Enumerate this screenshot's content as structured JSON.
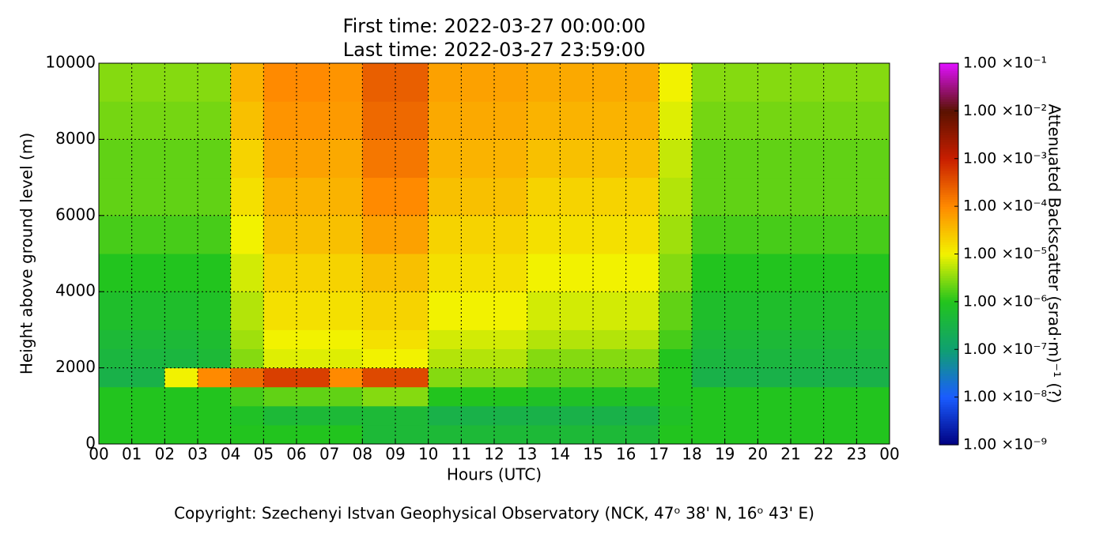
{
  "chart_data": {
    "type": "heatmap",
    "title": "First time: 2022-03-27 00:00:00",
    "subtitle": "Last time: 2022-03-27 23:59:00",
    "x_label": "Hours (UTC)",
    "y_label": "Height above ground level (m)",
    "colorbar_label": "Attenuated Backscatter (srad·m)⁻¹ (?)",
    "footer": "Copyright: Szechenyi Istvan Geophysical Observatory (NCK, 47ᵒ 38' N, 16ᵒ 43' E)",
    "grid": true,
    "xlim": [
      0,
      24
    ],
    "ylim": [
      0,
      10000
    ],
    "xticks": [
      {
        "value": 0,
        "label": "00"
      },
      {
        "value": 1,
        "label": "01"
      },
      {
        "value": 2,
        "label": "02"
      },
      {
        "value": 3,
        "label": "03"
      },
      {
        "value": 4,
        "label": "04"
      },
      {
        "value": 5,
        "label": "05"
      },
      {
        "value": 6,
        "label": "06"
      },
      {
        "value": 7,
        "label": "07"
      },
      {
        "value": 8,
        "label": "08"
      },
      {
        "value": 9,
        "label": "09"
      },
      {
        "value": 10,
        "label": "10"
      },
      {
        "value": 11,
        "label": "11"
      },
      {
        "value": 12,
        "label": "12"
      },
      {
        "value": 13,
        "label": "13"
      },
      {
        "value": 14,
        "label": "14"
      },
      {
        "value": 15,
        "label": "15"
      },
      {
        "value": 16,
        "label": "16"
      },
      {
        "value": 17,
        "label": "17"
      },
      {
        "value": 18,
        "label": "18"
      },
      {
        "value": 19,
        "label": "19"
      },
      {
        "value": 20,
        "label": "20"
      },
      {
        "value": 21,
        "label": "21"
      },
      {
        "value": 22,
        "label": "22"
      },
      {
        "value": 23,
        "label": "23"
      },
      {
        "value": 24,
        "label": "00"
      }
    ],
    "yticks": [
      0,
      2000,
      4000,
      6000,
      8000,
      10000
    ],
    "x_bins": [
      0,
      1,
      2,
      3,
      4,
      5,
      6,
      7,
      8,
      9,
      10,
      11,
      12,
      13,
      14,
      15,
      16,
      17,
      18,
      19,
      20,
      21,
      22,
      23,
      24
    ],
    "y_bins": [
      0,
      500,
      1000,
      1500,
      2000,
      2500,
      3000,
      4000,
      5000,
      6000,
      7000,
      8000,
      9000,
      10000
    ],
    "z": [
      [
        1e-06,
        1e-06,
        1e-06,
        3e-07,
        4e-07,
        5e-07,
        7e-07,
        1e-06,
        1.5e-06,
        2e-06,
        2e-06,
        2.5e-06,
        3e-06
      ],
      [
        1e-06,
        1e-06,
        1e-06,
        3e-07,
        4e-07,
        5e-07,
        7e-07,
        1e-06,
        1.5e-06,
        2e-06,
        2e-06,
        2.5e-06,
        3e-06
      ],
      [
        1e-06,
        1e-06,
        1e-06,
        1e-05,
        4e-07,
        5e-07,
        7e-07,
        1e-06,
        1.5e-06,
        2e-06,
        2e-06,
        2.5e-06,
        3e-06
      ],
      [
        1e-06,
        1e-06,
        1e-06,
        0.0001,
        5e-07,
        6e-07,
        8e-07,
        1e-06,
        1.5e-06,
        2e-06,
        2e-06,
        2.5e-06,
        3e-06
      ],
      [
        1e-06,
        8e-07,
        1.5e-06,
        0.0002,
        3e-06,
        4e-06,
        5e-06,
        7e-06,
        1e-05,
        1.5e-05,
        2e-05,
        3e-05,
        4e-05
      ],
      [
        1e-06,
        5e-07,
        2e-06,
        0.0005,
        8e-06,
        1e-05,
        1.5e-05,
        2e-05,
        3e-05,
        4e-05,
        6e-05,
        8e-05,
        0.0001
      ],
      [
        1e-06,
        5e-07,
        2e-06,
        0.0005,
        8e-06,
        1e-05,
        1.5e-05,
        2e-05,
        3e-05,
        4e-05,
        6e-05,
        8e-05,
        0.0001
      ],
      [
        1e-06,
        5e-07,
        2e-06,
        0.0001,
        8e-06,
        1e-05,
        1.5e-05,
        2e-05,
        3e-05,
        4e-05,
        5e-05,
        7e-05,
        8e-05
      ],
      [
        5e-07,
        5e-07,
        3e-06,
        0.0004,
        1e-05,
        1.5e-05,
        2e-05,
        3e-05,
        6e-05,
        0.0001,
        0.00015,
        0.0002,
        0.00025
      ],
      [
        5e-07,
        5e-07,
        3e-06,
        0.0004,
        1e-05,
        1.5e-05,
        2e-05,
        3e-05,
        6e-05,
        0.0001,
        0.00015,
        0.0002,
        0.00025
      ],
      [
        5e-07,
        3e-07,
        1e-06,
        3e-06,
        5e-06,
        7e-06,
        1e-05,
        1.5e-05,
        2e-05,
        3e-05,
        4e-05,
        5e-05,
        6e-05
      ],
      [
        5e-07,
        3e-07,
        1e-06,
        3e-06,
        5e-06,
        7e-06,
        1e-05,
        1.5e-05,
        2e-05,
        3e-05,
        4e-05,
        5e-05,
        6e-05
      ],
      [
        5e-07,
        3e-07,
        1e-06,
        3e-06,
        5e-06,
        7e-06,
        1e-05,
        1.5e-05,
        2e-05,
        3e-05,
        4e-05,
        5e-05,
        6e-05
      ],
      [
        5e-07,
        3e-07,
        8e-07,
        2e-06,
        3e-06,
        5e-06,
        7e-06,
        1e-05,
        1.5e-05,
        2e-05,
        3e-05,
        4e-05,
        5e-05
      ],
      [
        5e-07,
        3e-07,
        8e-07,
        2e-06,
        3e-06,
        5e-06,
        7e-06,
        1e-05,
        1.5e-05,
        2e-05,
        3e-05,
        4e-05,
        5e-05
      ],
      [
        5e-07,
        3e-07,
        8e-07,
        2e-06,
        3e-06,
        5e-06,
        7e-06,
        1e-05,
        1.5e-05,
        2e-05,
        3e-05,
        4e-05,
        5e-05
      ],
      [
        5e-07,
        3e-07,
        8e-07,
        2e-06,
        3e-06,
        5e-06,
        7e-06,
        1e-05,
        1.5e-05,
        2e-05,
        3e-05,
        4e-05,
        5e-05
      ],
      [
        1e-06,
        8e-07,
        1e-06,
        1e-06,
        1e-06,
        1.5e-06,
        2e-06,
        3e-06,
        4e-06,
        5e-06,
        6e-06,
        8e-06,
        1e-05
      ],
      [
        1e-06,
        1e-06,
        1e-06,
        3e-07,
        4e-07,
        5e-07,
        7e-07,
        1e-06,
        1.5e-06,
        2e-06,
        2e-06,
        2.5e-06,
        3e-06
      ],
      [
        1e-06,
        1e-06,
        1e-06,
        3e-07,
        4e-07,
        5e-07,
        7e-07,
        1e-06,
        1.5e-06,
        2e-06,
        2e-06,
        2.5e-06,
        3e-06
      ],
      [
        1e-06,
        1e-06,
        1e-06,
        3e-07,
        4e-07,
        5e-07,
        7e-07,
        1e-06,
        1.5e-06,
        2e-06,
        2e-06,
        2.5e-06,
        3e-06
      ],
      [
        1e-06,
        1e-06,
        1e-06,
        3e-07,
        4e-07,
        5e-07,
        7e-07,
        1e-06,
        1.5e-06,
        2e-06,
        2e-06,
        2.5e-06,
        3e-06
      ],
      [
        1e-06,
        1e-06,
        1e-06,
        3e-07,
        4e-07,
        5e-07,
        7e-07,
        1e-06,
        1.5e-06,
        2e-06,
        2e-06,
        2.5e-06,
        3e-06
      ],
      [
        1e-06,
        1e-06,
        1e-06,
        3e-07,
        4e-07,
        5e-07,
        7e-07,
        1e-06,
        1.5e-06,
        2e-06,
        2e-06,
        2.5e-06,
        3e-06
      ]
    ],
    "colorbar_scale": "log",
    "zlim": [
      1e-09,
      0.1
    ],
    "zticks": [
      {
        "value": 1e-09,
        "label": "1.00 ×10⁻⁹"
      },
      {
        "value": 1e-08,
        "label": "1.00 ×10⁻⁸"
      },
      {
        "value": 1e-07,
        "label": "1.00 ×10⁻⁷"
      },
      {
        "value": 1e-06,
        "label": "1.00 ×10⁻⁶"
      },
      {
        "value": 1e-05,
        "label": "1.00 ×10⁻⁵"
      },
      {
        "value": 0.0001,
        "label": "1.00 ×10⁻⁴"
      },
      {
        "value": 0.001,
        "label": "1.00 ×10⁻³"
      },
      {
        "value": 0.01,
        "label": "1.00 ×10⁻²"
      },
      {
        "value": 0.1,
        "label": "1.00 ×10⁻¹"
      }
    ],
    "colormap": [
      "#000080",
      "#1a5cff",
      "#10a070",
      "#22c41e",
      "#f2f200",
      "#ff8a00",
      "#c81e00",
      "#5a1200",
      "#e010ff"
    ]
  }
}
